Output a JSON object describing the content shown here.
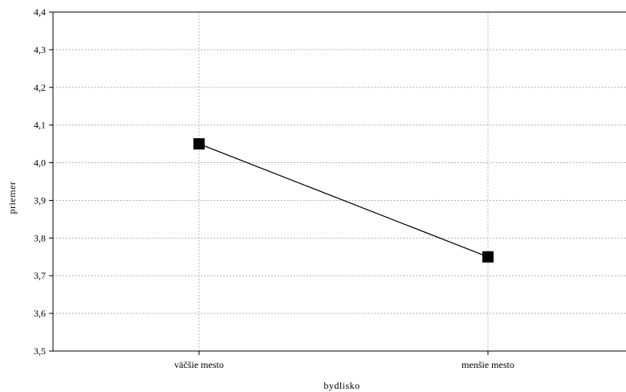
{
  "chart_data": {
    "type": "line",
    "categories": [
      "väčšie mesto",
      "menšie mesto"
    ],
    "series": [
      {
        "values": [
          4.05,
          3.75
        ]
      }
    ],
    "xlabel": "bydlisko",
    "ylabel": "priemer",
    "ylim": [
      3.5,
      4.4
    ],
    "yticks": [
      "3,5",
      "3,6",
      "3,7",
      "3,8",
      "3,9",
      "4,0",
      "4,1",
      "4,2",
      "4,3",
      "4,4"
    ],
    "grid": true,
    "marker": "square",
    "line_color": "#000000",
    "grid_color": "#b4b4b4"
  }
}
